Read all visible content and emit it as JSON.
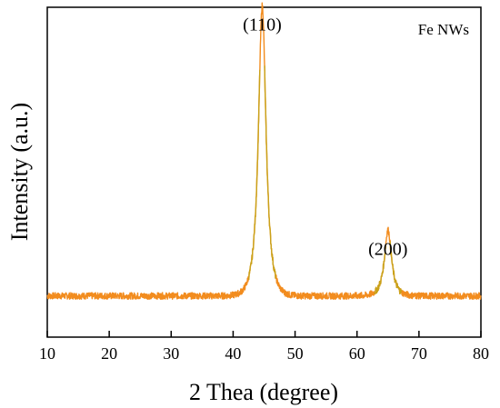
{
  "chart_data": {
    "type": "line",
    "xlabel": "2 Thea (degree)",
    "ylabel": "Intensity (a.u.)",
    "xlim": [
      10,
      80
    ],
    "ylim": [
      0,
      1
    ],
    "x_ticks": [
      "10",
      "20",
      "30",
      "40",
      "50",
      "60",
      "70",
      "80"
    ],
    "y_ticks_shown": false,
    "grid": false,
    "legend_position": "top-right",
    "legend": [
      "Fe NWs"
    ],
    "series": [
      {
        "name": "Fe NWs",
        "colors": [
          "#f28c1e",
          "#c9a21a"
        ],
        "baseline": 0.125,
        "noise_amplitude": 0.01,
        "peaks": [
          {
            "label": "(110)",
            "x": 44.7,
            "height": 0.88
          },
          {
            "label": "(200)",
            "x": 65.0,
            "height": 0.2
          }
        ]
      }
    ],
    "annotations": [
      {
        "text": "(110)",
        "x": 44.7,
        "y": 0.93
      },
      {
        "text": "(200)",
        "x": 65.0,
        "y": 0.25
      }
    ]
  }
}
